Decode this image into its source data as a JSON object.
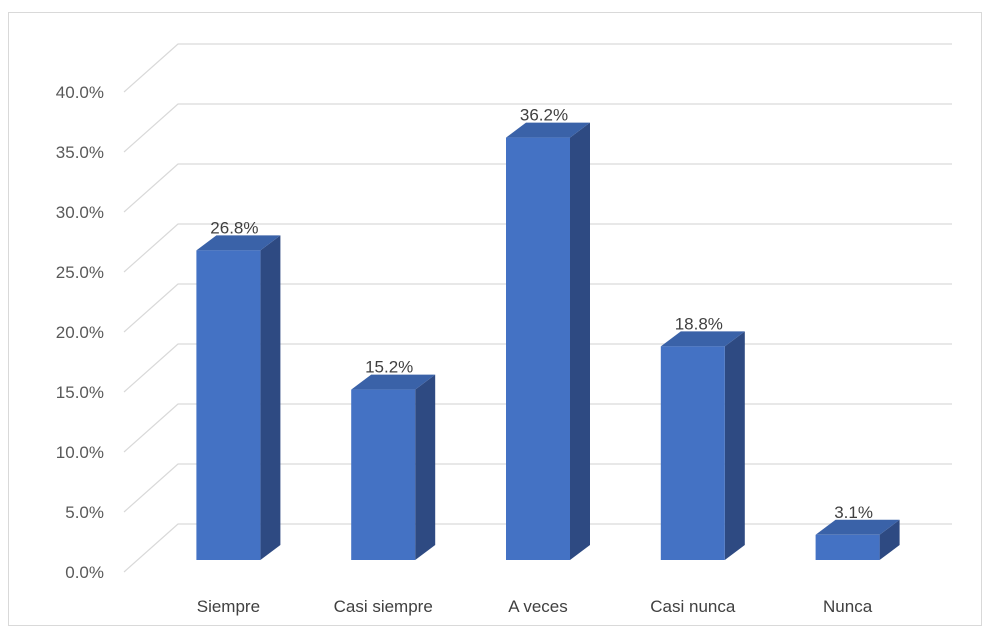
{
  "chart_data": {
    "type": "bar",
    "categories": [
      "Siempre",
      "Casi siempre",
      "A veces",
      "Casi nunca",
      "Nunca"
    ],
    "values": [
      26.8,
      15.2,
      36.2,
      18.8,
      3.1
    ],
    "data_labels": [
      "26.8%",
      "15.2%",
      "36.2%",
      "18.8%",
      "3.1%"
    ],
    "y_ticks": [
      "0.0%",
      "5.0%",
      "10.0%",
      "15.0%",
      "20.0%",
      "25.0%",
      "30.0%",
      "35.0%",
      "40.0%"
    ],
    "ylim": [
      0,
      40
    ],
    "grid": true,
    "legend": "none",
    "style": "3d-column",
    "colors": {
      "bar_front": "#4472c4",
      "bar_side": "#2e4a82",
      "bar_top": "#3a62a8",
      "grid": "#d9d9d9"
    }
  }
}
